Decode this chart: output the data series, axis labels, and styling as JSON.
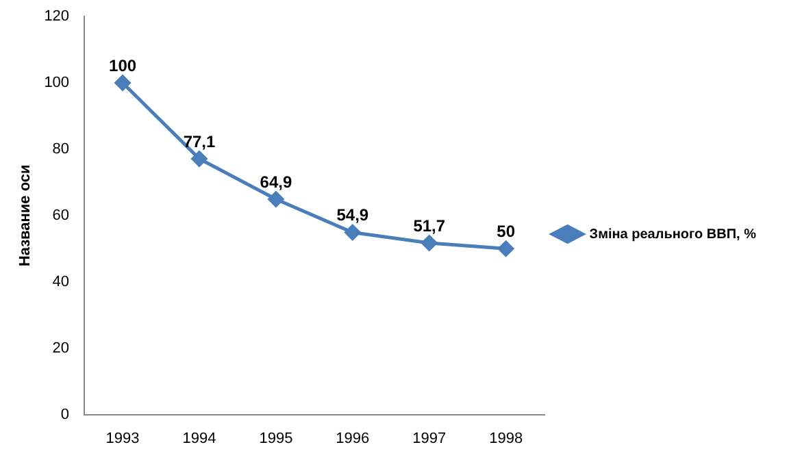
{
  "chart_data": {
    "type": "line",
    "ylabel": "Название оси",
    "categories": [
      "1993",
      "1994",
      "1995",
      "1996",
      "1997",
      "1998"
    ],
    "series": [
      {
        "name": "Зміна реального ВВП, %",
        "color": "#4a7ebb",
        "values": [
          100,
          77.1,
          64.9,
          54.9,
          51.7,
          50
        ],
        "value_labels": [
          "100",
          "77,1",
          "64,9",
          "54,9",
          "51,7",
          "50"
        ]
      }
    ],
    "ylim": [
      0,
      120
    ],
    "yticks": [
      0,
      20,
      40,
      60,
      80,
      100,
      120
    ],
    "grid": false,
    "legend": "right",
    "marker": "diamond"
  }
}
